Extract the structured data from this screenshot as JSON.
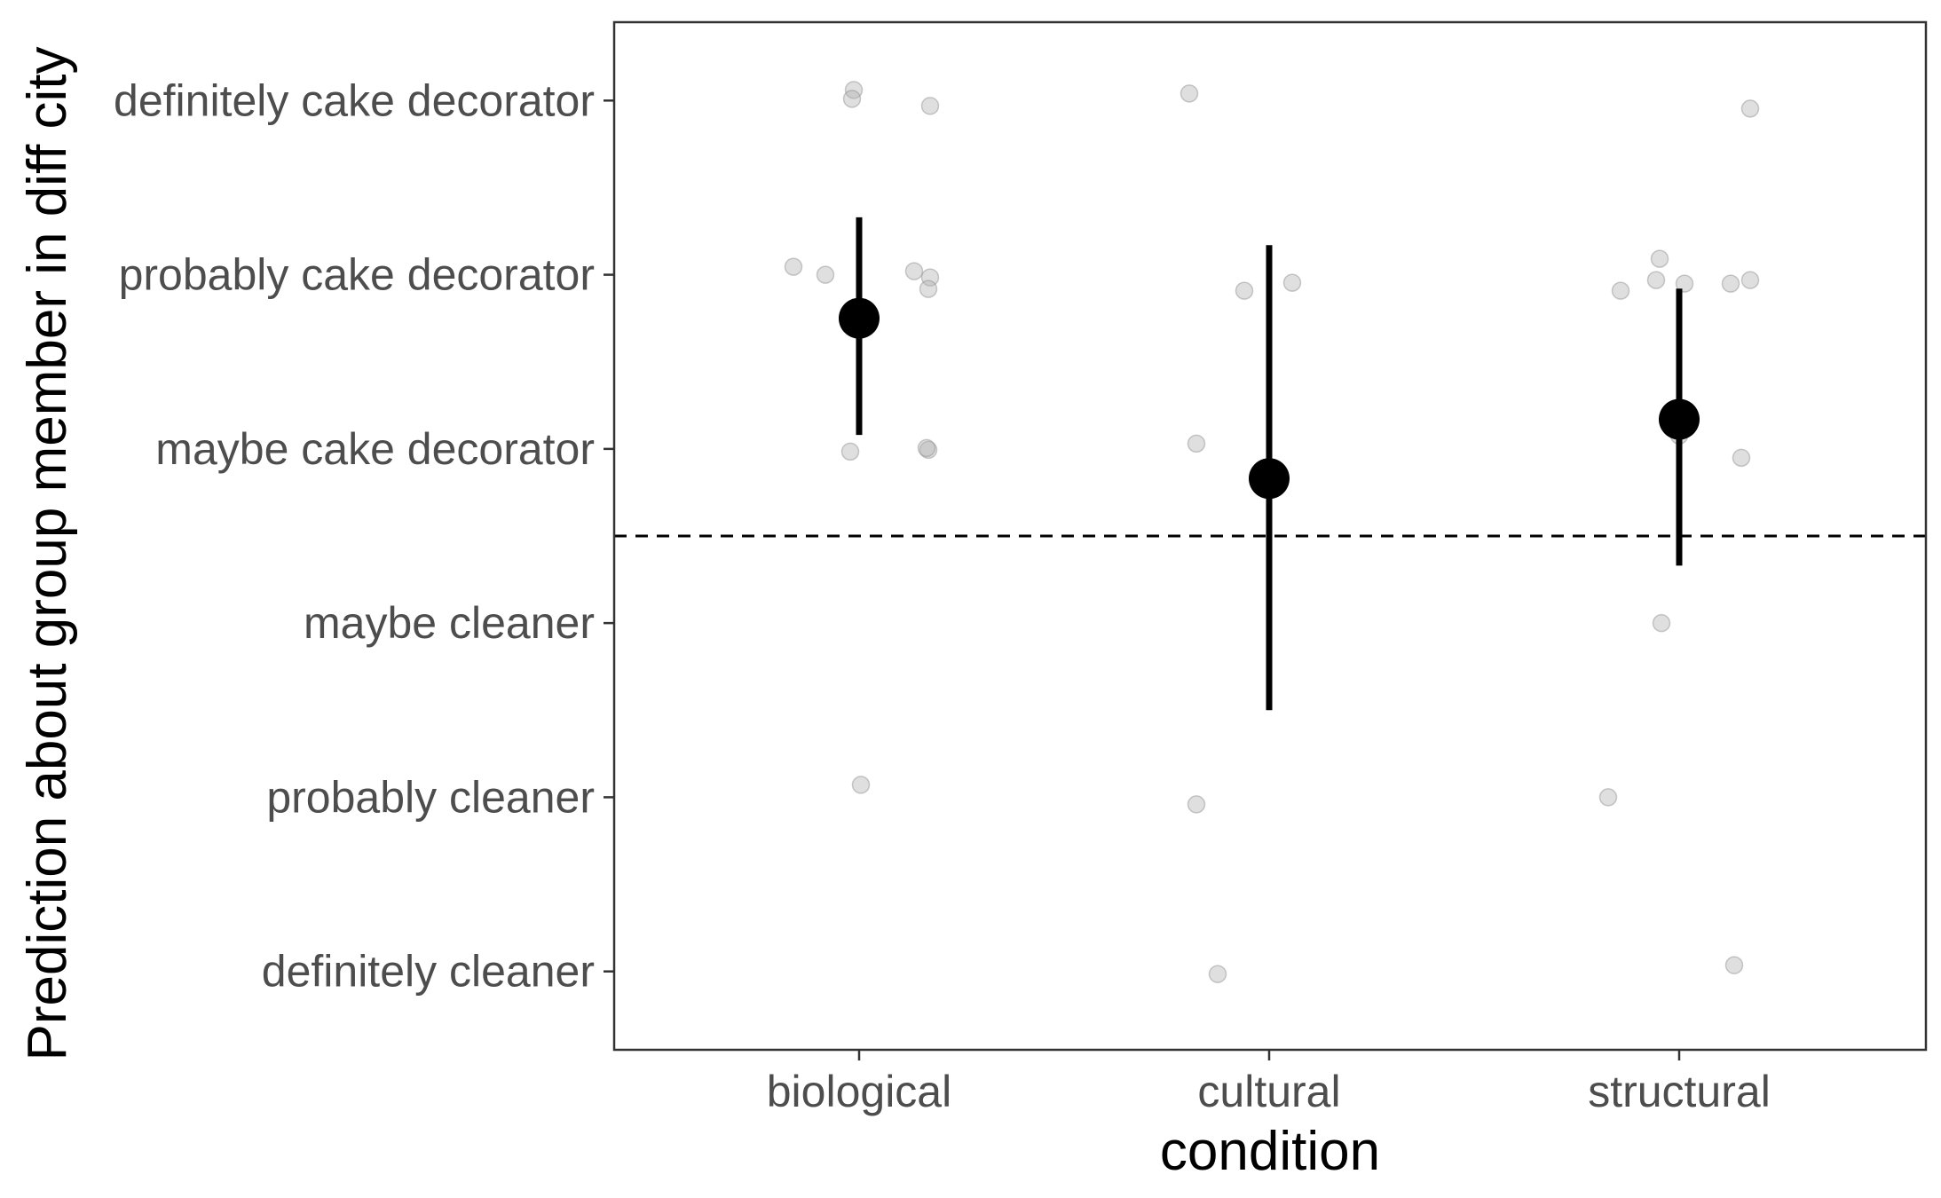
{
  "chart_data": {
    "type": "scatter",
    "title": "",
    "xlabel": "condition",
    "ylabel": "Prediction about group member in diff city",
    "categories": [
      "biological",
      "cultural",
      "structural"
    ],
    "y_levels": [
      "definitely cleaner",
      "probably cleaner",
      "maybe cleaner",
      "maybe cake decorator",
      "probably cake decorator",
      "definitely cake decorator"
    ],
    "ylim": [
      0.55,
      6.45
    ],
    "reference_line": {
      "y": 3.5,
      "style": "dashed"
    },
    "grid": false,
    "series": [
      {
        "kind": "raw responses (jittered)",
        "points": [
          {
            "x": "biological",
            "y": 6.0
          },
          {
            "x": "biological",
            "y": 6.0
          },
          {
            "x": "biological",
            "y": 6.0
          },
          {
            "x": "biological",
            "y": 5.0
          },
          {
            "x": "biological",
            "y": 5.0
          },
          {
            "x": "biological",
            "y": 5.0
          },
          {
            "x": "biological",
            "y": 5.0
          },
          {
            "x": "biological",
            "y": 5.0
          },
          {
            "x": "biological",
            "y": 4.0
          },
          {
            "x": "biological",
            "y": 4.0
          },
          {
            "x": "biological",
            "y": 4.0
          },
          {
            "x": "biological",
            "y": 2.0
          },
          {
            "x": "cultural",
            "y": 6.0
          },
          {
            "x": "cultural",
            "y": 5.0
          },
          {
            "x": "cultural",
            "y": 5.0
          },
          {
            "x": "cultural",
            "y": 4.0
          },
          {
            "x": "cultural",
            "y": 2.0
          },
          {
            "x": "cultural",
            "y": 1.0
          },
          {
            "x": "structural",
            "y": 6.0
          },
          {
            "x": "structural",
            "y": 5.0
          },
          {
            "x": "structural",
            "y": 5.0
          },
          {
            "x": "structural",
            "y": 5.0
          },
          {
            "x": "structural",
            "y": 5.0
          },
          {
            "x": "structural",
            "y": 5.0
          },
          {
            "x": "structural",
            "y": 5.0
          },
          {
            "x": "structural",
            "y": 4.0
          },
          {
            "x": "structural",
            "y": 4.0
          },
          {
            "x": "structural",
            "y": 3.0
          },
          {
            "x": "structural",
            "y": 2.0
          },
          {
            "x": "structural",
            "y": 1.0
          }
        ]
      },
      {
        "kind": "mean with interval",
        "points": [
          {
            "x": "biological",
            "mean": 4.75,
            "lower": 4.08,
            "upper": 5.33
          },
          {
            "x": "cultural",
            "mean": 3.83,
            "lower": 2.5,
            "upper": 5.17
          },
          {
            "x": "structural",
            "mean": 4.17,
            "lower": 3.33,
            "upper": 4.92
          }
        ]
      }
    ],
    "colors": {
      "points": "#b3b3b3",
      "summary": "#000000",
      "panel_border": "#333333",
      "tick_text": "#4d4d4d"
    }
  }
}
